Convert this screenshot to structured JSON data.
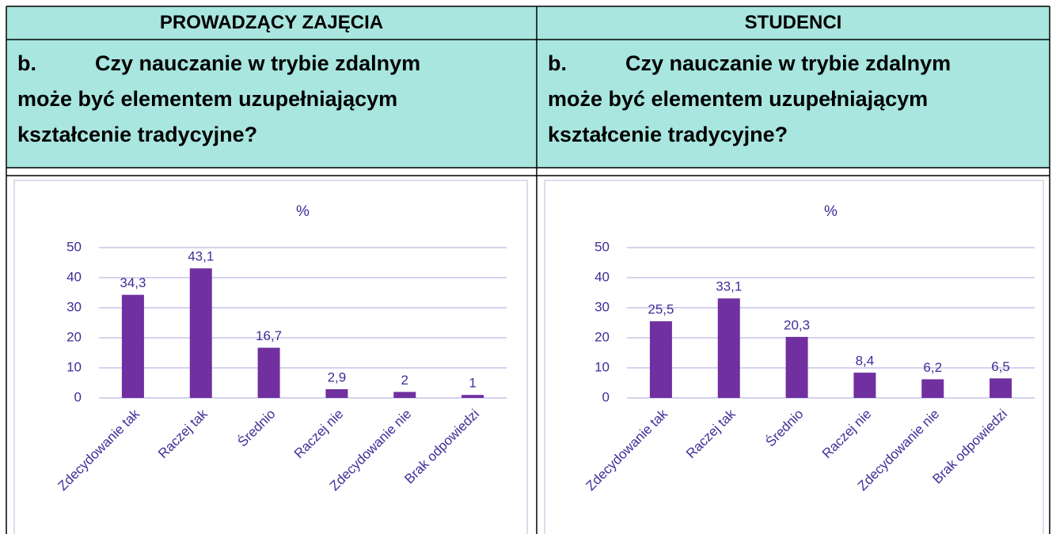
{
  "table": {
    "headers": [
      "PROWADZĄCY ZAJĘCIA",
      "STUDENCI"
    ],
    "questions": [
      {
        "label": "b.",
        "lines": [
          "Czy nauczanie w trybie zdalnym",
          "może być elementem uzupełniającym",
          "kształcenie tradycyjne?"
        ]
      },
      {
        "label": "b.",
        "lines": [
          "Czy nauczanie w trybie zdalnym",
          "może być elementem uzupełniającym",
          "kształcenie tradycyjne?"
        ]
      }
    ]
  },
  "chart_data": [
    {
      "type": "bar",
      "title": "%",
      "categories": [
        "Zdecydowanie tak",
        "Raczej tak",
        "Średnio",
        "Raczej nie",
        "Zdecydowanie nie",
        "Brak odpowiedzi"
      ],
      "values": [
        34.3,
        43.1,
        16.7,
        2.9,
        2,
        1
      ],
      "value_labels": [
        "34,3",
        "43,1",
        "16,7",
        "2,9",
        "2",
        "1"
      ],
      "color": "#7030a0",
      "ylim": [
        0,
        50
      ],
      "yticks": [
        0,
        10,
        20,
        30,
        40,
        50
      ],
      "grid": true
    },
    {
      "type": "bar",
      "title": "%",
      "categories": [
        "Zdecydowanie tak",
        "Raczej tak",
        "Średnio",
        "Raczej nie",
        "Zdecydowanie nie",
        "Brak odpowiedzi"
      ],
      "values": [
        25.5,
        33.1,
        20.3,
        8.4,
        6.2,
        6.5
      ],
      "value_labels": [
        "25,5",
        "33,1",
        "20,3",
        "8,4",
        "6,2",
        "6,5"
      ],
      "color": "#7030a0",
      "ylim": [
        0,
        50
      ],
      "yticks": [
        0,
        10,
        20,
        30,
        40,
        50
      ],
      "grid": true
    }
  ]
}
